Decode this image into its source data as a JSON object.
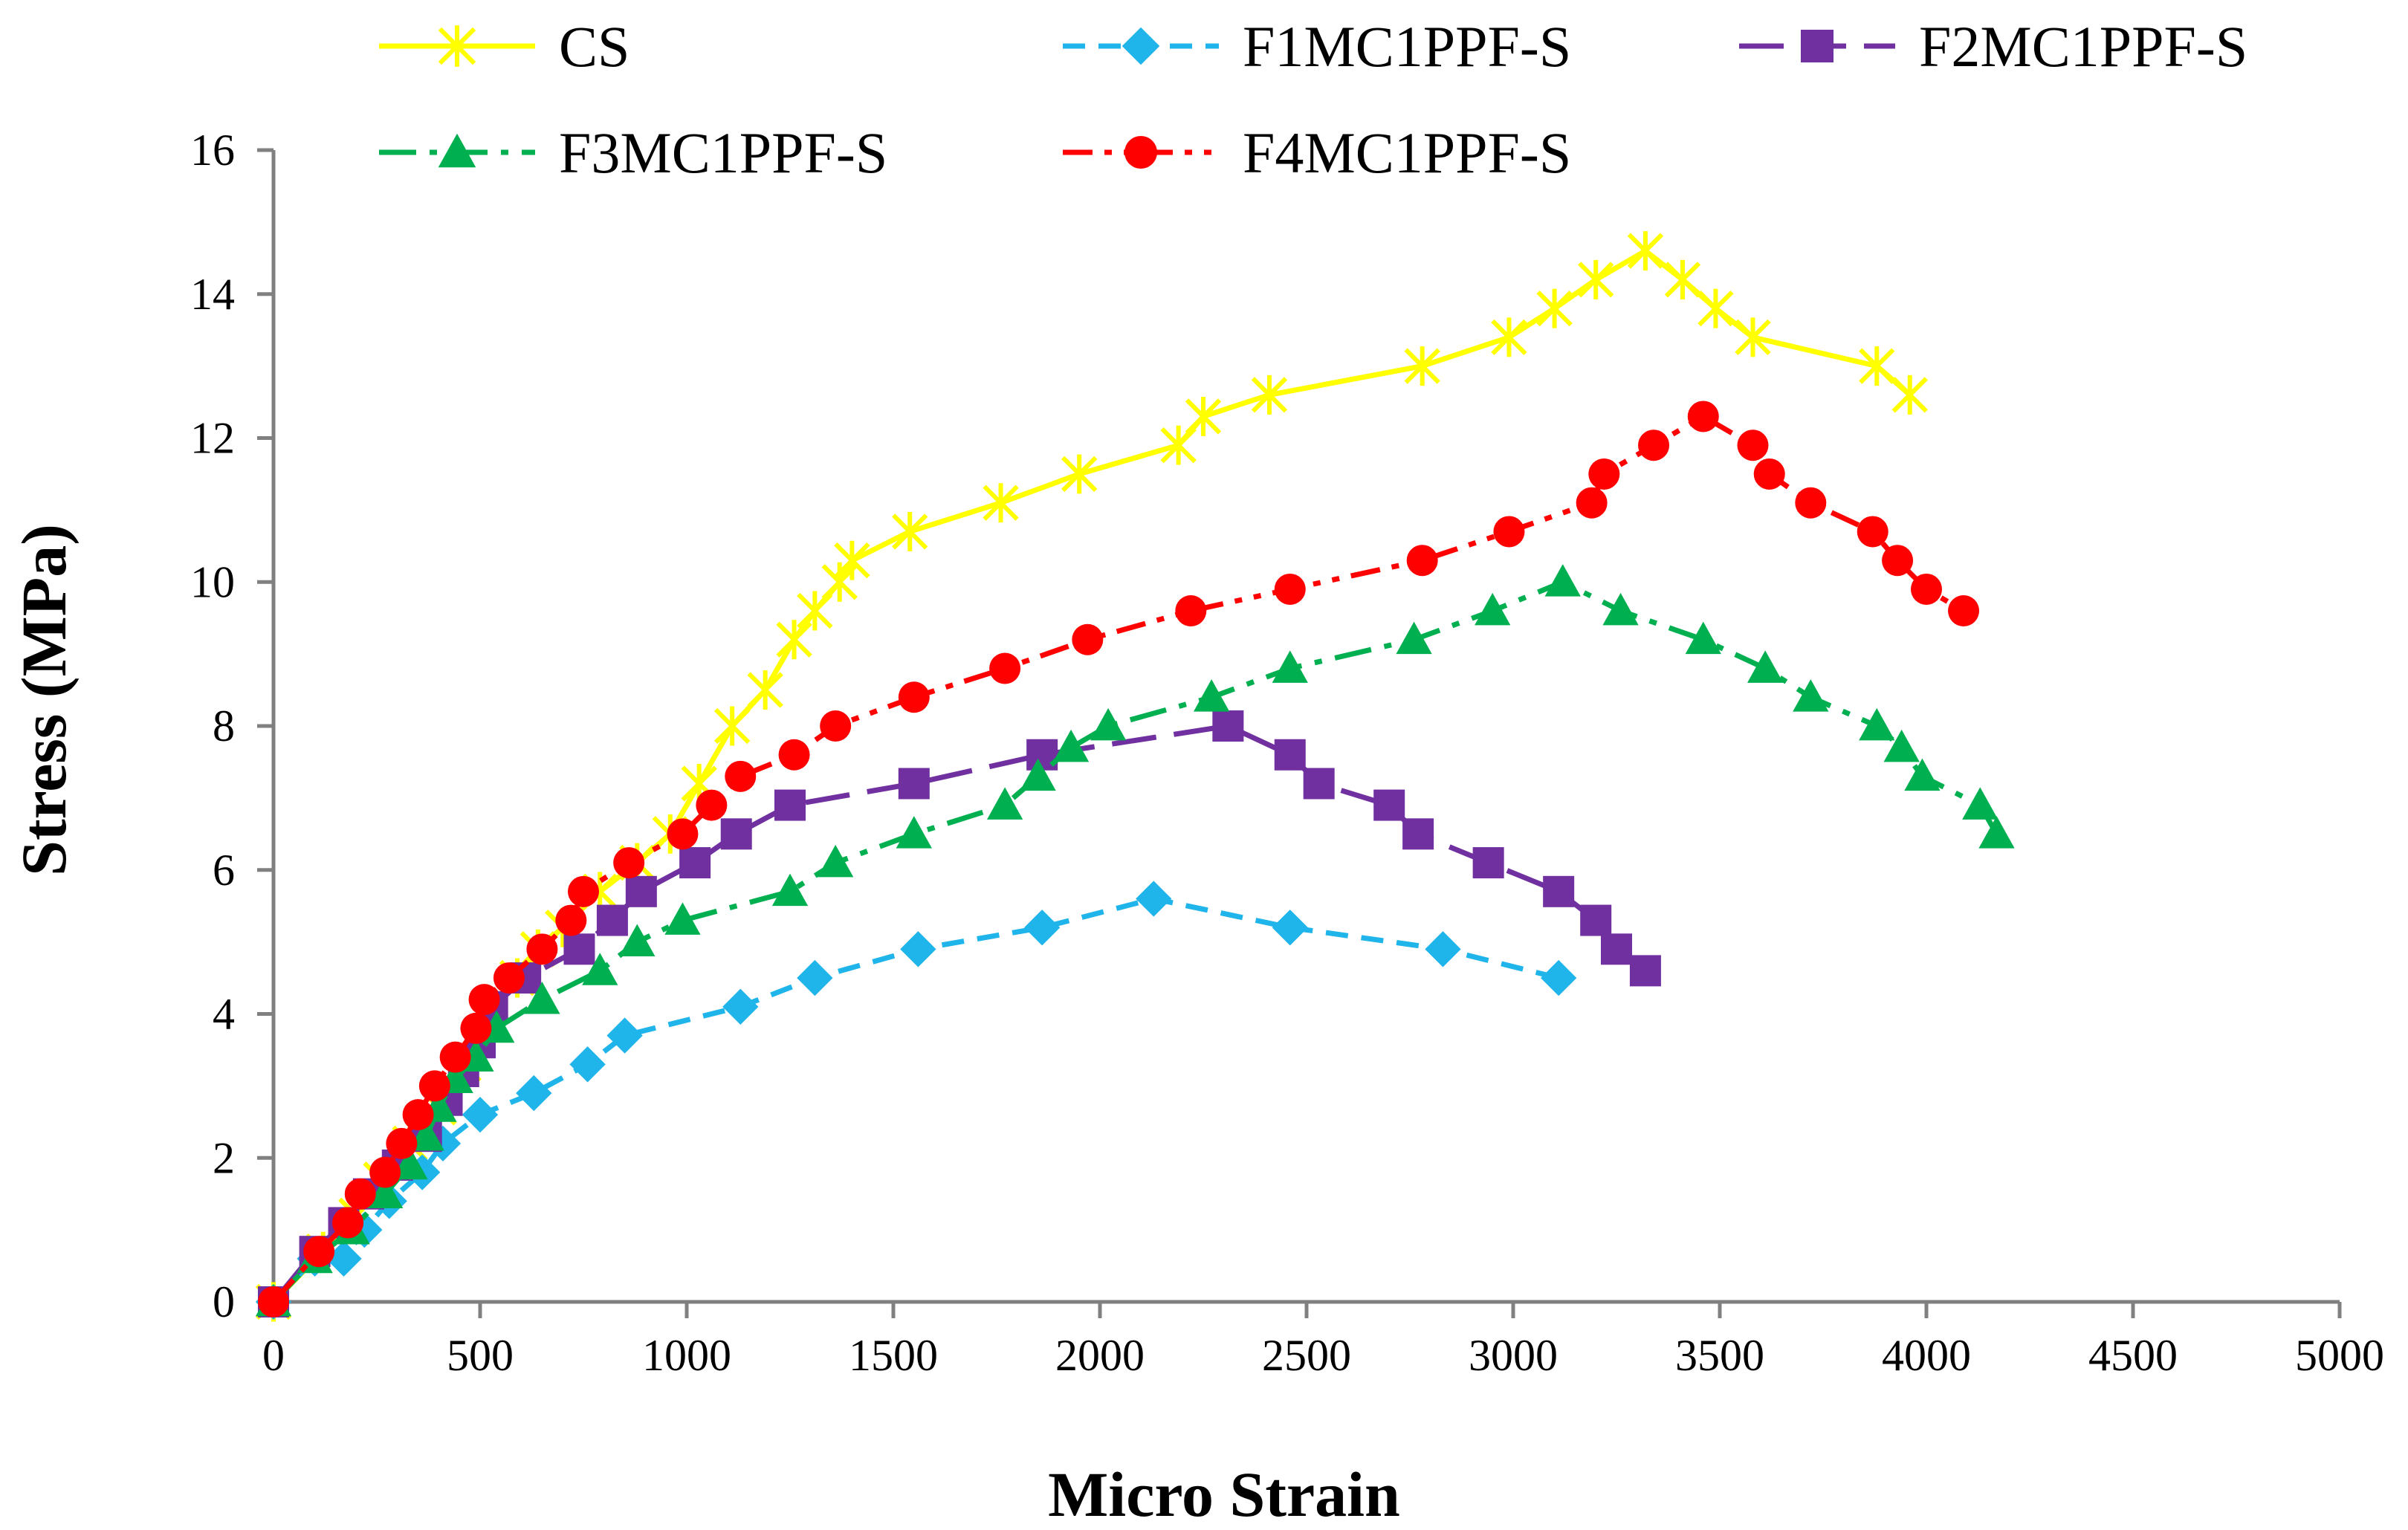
{
  "chart_data": {
    "type": "line",
    "xlabel": "Micro Strain",
    "ylabel": "Stress (MPa)",
    "xlim": [
      0,
      5000
    ],
    "ylim": [
      0,
      16
    ],
    "xticks": [
      0,
      500,
      1000,
      1500,
      2000,
      2500,
      3000,
      3500,
      4000,
      4500,
      5000
    ],
    "yticks": [
      0,
      2,
      4,
      6,
      8,
      10,
      12,
      14,
      16
    ],
    "grid": false,
    "legend_position": "top",
    "series": [
      {
        "name": "CS",
        "color": "#FFFF00",
        "marker": "asterisk",
        "dash": "solid",
        "points": [
          [
            0,
            0
          ],
          [
            120,
            0.7
          ],
          [
            200,
            1.2
          ],
          [
            260,
            1.7
          ],
          [
            330,
            2.2
          ],
          [
            400,
            2.7
          ],
          [
            460,
            3.3
          ],
          [
            520,
            3.9
          ],
          [
            590,
            4.5
          ],
          [
            640,
            4.9
          ],
          [
            700,
            5.2
          ],
          [
            790,
            5.7
          ],
          [
            880,
            6.1
          ],
          [
            960,
            6.5
          ],
          [
            1030,
            7.2
          ],
          [
            1110,
            8.0
          ],
          [
            1190,
            8.5
          ],
          [
            1260,
            9.2
          ],
          [
            1310,
            9.6
          ],
          [
            1370,
            10.0
          ],
          [
            1400,
            10.3
          ],
          [
            1540,
            10.7
          ],
          [
            1760,
            11.1
          ],
          [
            1950,
            11.5
          ],
          [
            2190,
            11.9
          ],
          [
            2250,
            12.3
          ],
          [
            2410,
            12.6
          ],
          [
            2780,
            13.0
          ],
          [
            2990,
            13.4
          ],
          [
            3100,
            13.8
          ],
          [
            3200,
            14.2
          ],
          [
            3320,
            14.6
          ],
          [
            3410,
            14.2
          ],
          [
            3490,
            13.8
          ],
          [
            3580,
            13.4
          ],
          [
            3880,
            13.0
          ],
          [
            3960,
            12.6
          ]
        ]
      },
      {
        "name": "F1MC1PPF-S",
        "color": "#1FB4EA",
        "marker": "diamond",
        "dash": "dash",
        "points": [
          [
            0,
            0
          ],
          [
            100,
            0.6
          ],
          [
            170,
            0.6
          ],
          [
            220,
            1.0
          ],
          [
            280,
            1.4
          ],
          [
            360,
            1.8
          ],
          [
            410,
            2.2
          ],
          [
            500,
            2.6
          ],
          [
            630,
            2.9
          ],
          [
            760,
            3.3
          ],
          [
            850,
            3.7
          ],
          [
            1130,
            4.1
          ],
          [
            1310,
            4.5
          ],
          [
            1560,
            4.9
          ],
          [
            1860,
            5.2
          ],
          [
            2130,
            5.6
          ],
          [
            2460,
            5.2
          ],
          [
            2830,
            4.9
          ],
          [
            3110,
            4.5
          ]
        ]
      },
      {
        "name": "F2MC1PPF-S",
        "color": "#7030A0",
        "marker": "square",
        "dash": "longdash",
        "points": [
          [
            0,
            0
          ],
          [
            100,
            0.7
          ],
          [
            170,
            1.1
          ],
          [
            230,
            1.5
          ],
          [
            300,
            1.9
          ],
          [
            370,
            2.3
          ],
          [
            420,
            2.8
          ],
          [
            460,
            3.2
          ],
          [
            500,
            3.6
          ],
          [
            530,
            4.1
          ],
          [
            610,
            4.5
          ],
          [
            740,
            4.9
          ],
          [
            820,
            5.3
          ],
          [
            890,
            5.7
          ],
          [
            1020,
            6.1
          ],
          [
            1120,
            6.5
          ],
          [
            1250,
            6.9
          ],
          [
            1550,
            7.2
          ],
          [
            1860,
            7.6
          ],
          [
            2310,
            8.0
          ],
          [
            2460,
            7.6
          ],
          [
            2530,
            7.2
          ],
          [
            2700,
            6.9
          ],
          [
            2770,
            6.5
          ],
          [
            2940,
            6.1
          ],
          [
            3110,
            5.7
          ],
          [
            3200,
            5.3
          ],
          [
            3250,
            4.9
          ],
          [
            3320,
            4.6
          ]
        ]
      },
      {
        "name": "F3MC1PPF-S",
        "color": "#00B050",
        "marker": "triangle",
        "dash": "dashdot",
        "points": [
          [
            0,
            0
          ],
          [
            100,
            0.6
          ],
          [
            190,
            1.0
          ],
          [
            270,
            1.5
          ],
          [
            330,
            1.9
          ],
          [
            370,
            2.3
          ],
          [
            400,
            2.7
          ],
          [
            440,
            3.1
          ],
          [
            490,
            3.4
          ],
          [
            540,
            3.8
          ],
          [
            650,
            4.2
          ],
          [
            790,
            4.6
          ],
          [
            880,
            5.0
          ],
          [
            990,
            5.3
          ],
          [
            1250,
            5.7
          ],
          [
            1360,
            6.1
          ],
          [
            1550,
            6.5
          ],
          [
            1770,
            6.9
          ],
          [
            1850,
            7.3
          ],
          [
            1930,
            7.7
          ],
          [
            2020,
            8.0
          ],
          [
            2270,
            8.4
          ],
          [
            2460,
            8.8
          ],
          [
            2760,
            9.2
          ],
          [
            2950,
            9.6
          ],
          [
            3120,
            10.0
          ],
          [
            3260,
            9.6
          ],
          [
            3460,
            9.2
          ],
          [
            3610,
            8.8
          ],
          [
            3720,
            8.4
          ],
          [
            3880,
            8.0
          ],
          [
            3940,
            7.7
          ],
          [
            3990,
            7.3
          ],
          [
            4130,
            6.9
          ],
          [
            4170,
            6.5
          ]
        ]
      },
      {
        "name": "F4MC1PPF-S",
        "color": "#FF0000",
        "marker": "circle",
        "dash": "dashdotdot",
        "points": [
          [
            0,
            0
          ],
          [
            110,
            0.7
          ],
          [
            180,
            1.1
          ],
          [
            210,
            1.5
          ],
          [
            270,
            1.8
          ],
          [
            310,
            2.2
          ],
          [
            350,
            2.6
          ],
          [
            390,
            3.0
          ],
          [
            440,
            3.4
          ],
          [
            490,
            3.8
          ],
          [
            510,
            4.2
          ],
          [
            570,
            4.5
          ],
          [
            650,
            4.9
          ],
          [
            720,
            5.3
          ],
          [
            750,
            5.7
          ],
          [
            860,
            6.1
          ],
          [
            990,
            6.5
          ],
          [
            1060,
            6.9
          ],
          [
            1130,
            7.3
          ],
          [
            1260,
            7.6
          ],
          [
            1360,
            8.0
          ],
          [
            1550,
            8.4
          ],
          [
            1770,
            8.8
          ],
          [
            1970,
            9.2
          ],
          [
            2220,
            9.6
          ],
          [
            2460,
            9.9
          ],
          [
            2780,
            10.3
          ],
          [
            2990,
            10.7
          ],
          [
            3190,
            11.1
          ],
          [
            3220,
            11.5
          ],
          [
            3340,
            11.9
          ],
          [
            3460,
            12.3
          ],
          [
            3580,
            11.9
          ],
          [
            3620,
            11.5
          ],
          [
            3720,
            11.1
          ],
          [
            3870,
            10.7
          ],
          [
            3930,
            10.3
          ],
          [
            4000,
            9.9
          ],
          [
            4090,
            9.6
          ]
        ]
      }
    ]
  }
}
